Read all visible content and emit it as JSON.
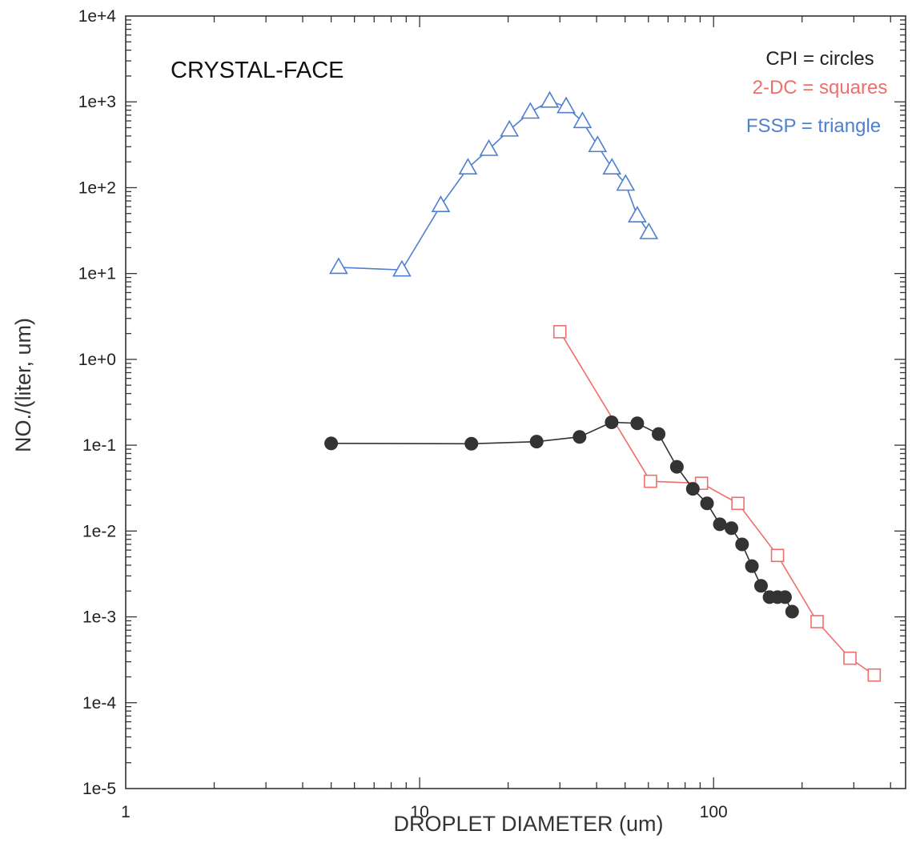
{
  "chart_data": {
    "type": "scatter",
    "annotation": "CRYSTAL-FACE",
    "xlabel": "DROPLET DIAMETER (um)",
    "ylabel": "NO./(liter, um)",
    "x_scale": "log",
    "y_scale": "log",
    "xlim": [
      1,
      450
    ],
    "ylim": [
      1e-05,
      10000
    ],
    "x_ticks": [
      1,
      10,
      100
    ],
    "x_tick_labels": [
      "1",
      "10",
      "100"
    ],
    "y_ticks": [
      1e-05,
      0.0001,
      0.001,
      0.01,
      0.1,
      1,
      10,
      100,
      1000,
      10000
    ],
    "y_tick_labels": [
      "1e-5",
      "1e-4",
      "1e-3",
      "1e-2",
      "1e-1",
      "1e+0",
      "1e+1",
      "1e+2",
      "1e+3",
      "1e+4"
    ],
    "grid": false,
    "legend_position": "top-right",
    "legend": [
      {
        "text": "CPI = circles",
        "color": "#222222"
      },
      {
        "text": "2-DC = squares",
        "color": "#ef6f6c"
      },
      {
        "text": "FSSP = triangle",
        "color": "#4f7fd0"
      }
    ],
    "series": [
      {
        "marker": "triangle",
        "color": "#4f7fd0",
        "x": [
          5.3,
          8.7,
          11.8,
          14.6,
          17.2,
          20.2,
          23.8,
          27.7,
          31.5,
          35.8,
          40.3,
          45.1,
          50.2,
          55.0,
          60.2
        ],
        "y": [
          11.8,
          11.0,
          62,
          170,
          280,
          470,
          760,
          1020,
          880,
          590,
          310,
          170,
          110,
          47,
          30
        ]
      },
      {
        "marker": "square",
        "color": "#ef6f6c",
        "x": [
          30,
          61,
          91,
          121,
          165,
          225,
          291,
          352
        ],
        "y": [
          2.1,
          0.038,
          0.036,
          0.021,
          0.0052,
          0.00088,
          0.00033,
          0.00021
        ]
      },
      {
        "marker": "circle",
        "color": "#333333",
        "x": [
          5,
          15,
          25,
          35,
          45,
          55,
          65,
          75,
          85,
          95,
          105,
          115,
          125,
          135,
          145,
          155,
          165,
          175,
          185
        ],
        "y": [
          0.105,
          0.104,
          0.11,
          0.125,
          0.185,
          0.18,
          0.135,
          0.056,
          0.031,
          0.021,
          0.012,
          0.0108,
          0.007,
          0.0039,
          0.0023,
          0.0017,
          0.0017,
          0.0017,
          0.00115
        ]
      }
    ]
  }
}
